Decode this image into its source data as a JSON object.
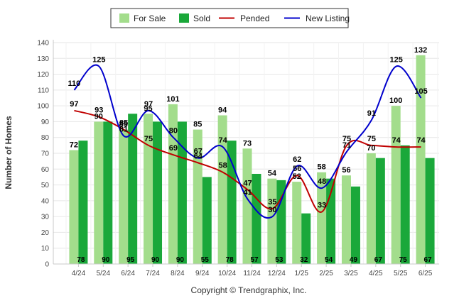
{
  "chart_data": {
    "type": "bar",
    "categories": [
      "4/24",
      "5/24",
      "6/24",
      "7/24",
      "8/24",
      "9/24",
      "10/24",
      "11/24",
      "12/24",
      "1/25",
      "2/25",
      "3/25",
      "4/25",
      "5/25",
      "6/25"
    ],
    "series": [
      {
        "name": "For Sale",
        "kind": "bar",
        "color": "#a3dd8c",
        "values": [
          72,
          90,
          85,
          95,
          101,
          85,
          94,
          73,
          54,
          52,
          58,
          56,
          70,
          100,
          132
        ]
      },
      {
        "name": "Sold",
        "kind": "bar",
        "color": "#1aa83a",
        "values": [
          78,
          90,
          95,
          90,
          90,
          55,
          78,
          57,
          53,
          32,
          54,
          49,
          67,
          75,
          67
        ]
      },
      {
        "name": "Pended",
        "kind": "line",
        "color": "#c00000",
        "values": [
          97,
          93,
          85,
          75,
          69,
          64,
          58,
          47,
          35,
          56,
          33,
          75,
          75,
          74,
          74
        ]
      },
      {
        "name": "New Listing",
        "kind": "line",
        "color": "#0000cc",
        "values": [
          110,
          125,
          81,
          97,
          80,
          67,
          74,
          41,
          30,
          62,
          48,
          71,
          91,
          125,
          105
        ]
      }
    ],
    "ylabel": "Number of Homes",
    "xlabel": "",
    "ylim": [
      0,
      140
    ],
    "yticks": [
      0,
      10,
      20,
      30,
      40,
      50,
      60,
      70,
      80,
      90,
      100,
      110,
      120,
      130,
      140
    ],
    "legend_position": "top-center",
    "grid": true
  },
  "credit": "Copyright © Trendgraphix, Inc."
}
